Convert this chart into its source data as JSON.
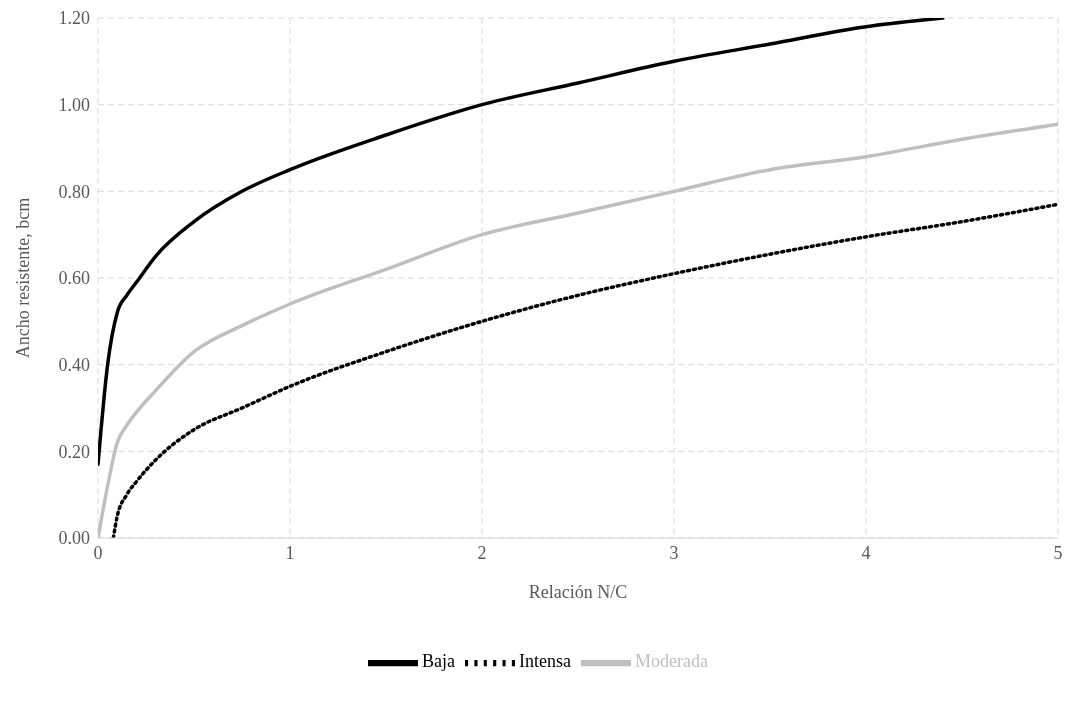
{
  "chart_data": {
    "type": "line",
    "xlabel": "Relación N/C",
    "ylabel": "Ancho resistente, bcm",
    "xlim": [
      0,
      5
    ],
    "xticks": [
      0,
      1,
      2,
      3,
      4,
      5
    ],
    "ylim": [
      0,
      1.2
    ],
    "yticks": [
      {
        "value": 0,
        "label": "0.00"
      },
      {
        "value": 0.2,
        "label": "0.20"
      },
      {
        "value": 0.4,
        "label": "0.40"
      },
      {
        "value": 0.6,
        "label": "0.60"
      },
      {
        "value": 0.8,
        "label": "0.80"
      },
      {
        "value": 1,
        "label": "1.00"
      },
      {
        "value": 1.2,
        "label": "1.20"
      }
    ],
    "grid": true,
    "legend": "bottom",
    "marker": "none",
    "series": [
      {
        "name": "Baja",
        "color": "#000000",
        "line_style": "solid",
        "x": [
          0,
          0.05,
          0.1,
          0.15,
          0.2,
          0.3,
          0.5,
          0.75,
          1,
          1.5,
          2,
          2.5,
          3,
          3.5,
          4,
          4.4
        ],
        "values": [
          0.17,
          0.4,
          0.52,
          0.56,
          0.59,
          0.65,
          0.73,
          0.8,
          0.85,
          0.93,
          1.0,
          1.05,
          1.1,
          1.14,
          1.18,
          1.2
        ]
      },
      {
        "name": "Moderada",
        "color": "#bfbfbf",
        "line_style": "solid",
        "x": [
          0,
          0.05,
          0.1,
          0.15,
          0.2,
          0.3,
          0.5,
          0.75,
          1,
          1.5,
          2,
          2.5,
          3,
          3.5,
          4,
          4.5,
          5
        ],
        "values": [
          0,
          0.12,
          0.22,
          0.26,
          0.29,
          0.34,
          0.43,
          0.49,
          0.54,
          0.62,
          0.7,
          0.75,
          0.8,
          0.85,
          0.88,
          0.92,
          0.955
        ]
      },
      {
        "name": "Intensa",
        "color": "#000000",
        "line_style": "dotted",
        "x": [
          0.08,
          0.1,
          0.15,
          0.2,
          0.3,
          0.5,
          0.75,
          1,
          1.5,
          2,
          2.5,
          3,
          3.5,
          4,
          4.5,
          5
        ],
        "values": [
          0,
          0.05,
          0.1,
          0.13,
          0.18,
          0.25,
          0.3,
          0.35,
          0.43,
          0.5,
          0.56,
          0.61,
          0.655,
          0.695,
          0.73,
          0.77
        ]
      }
    ]
  }
}
